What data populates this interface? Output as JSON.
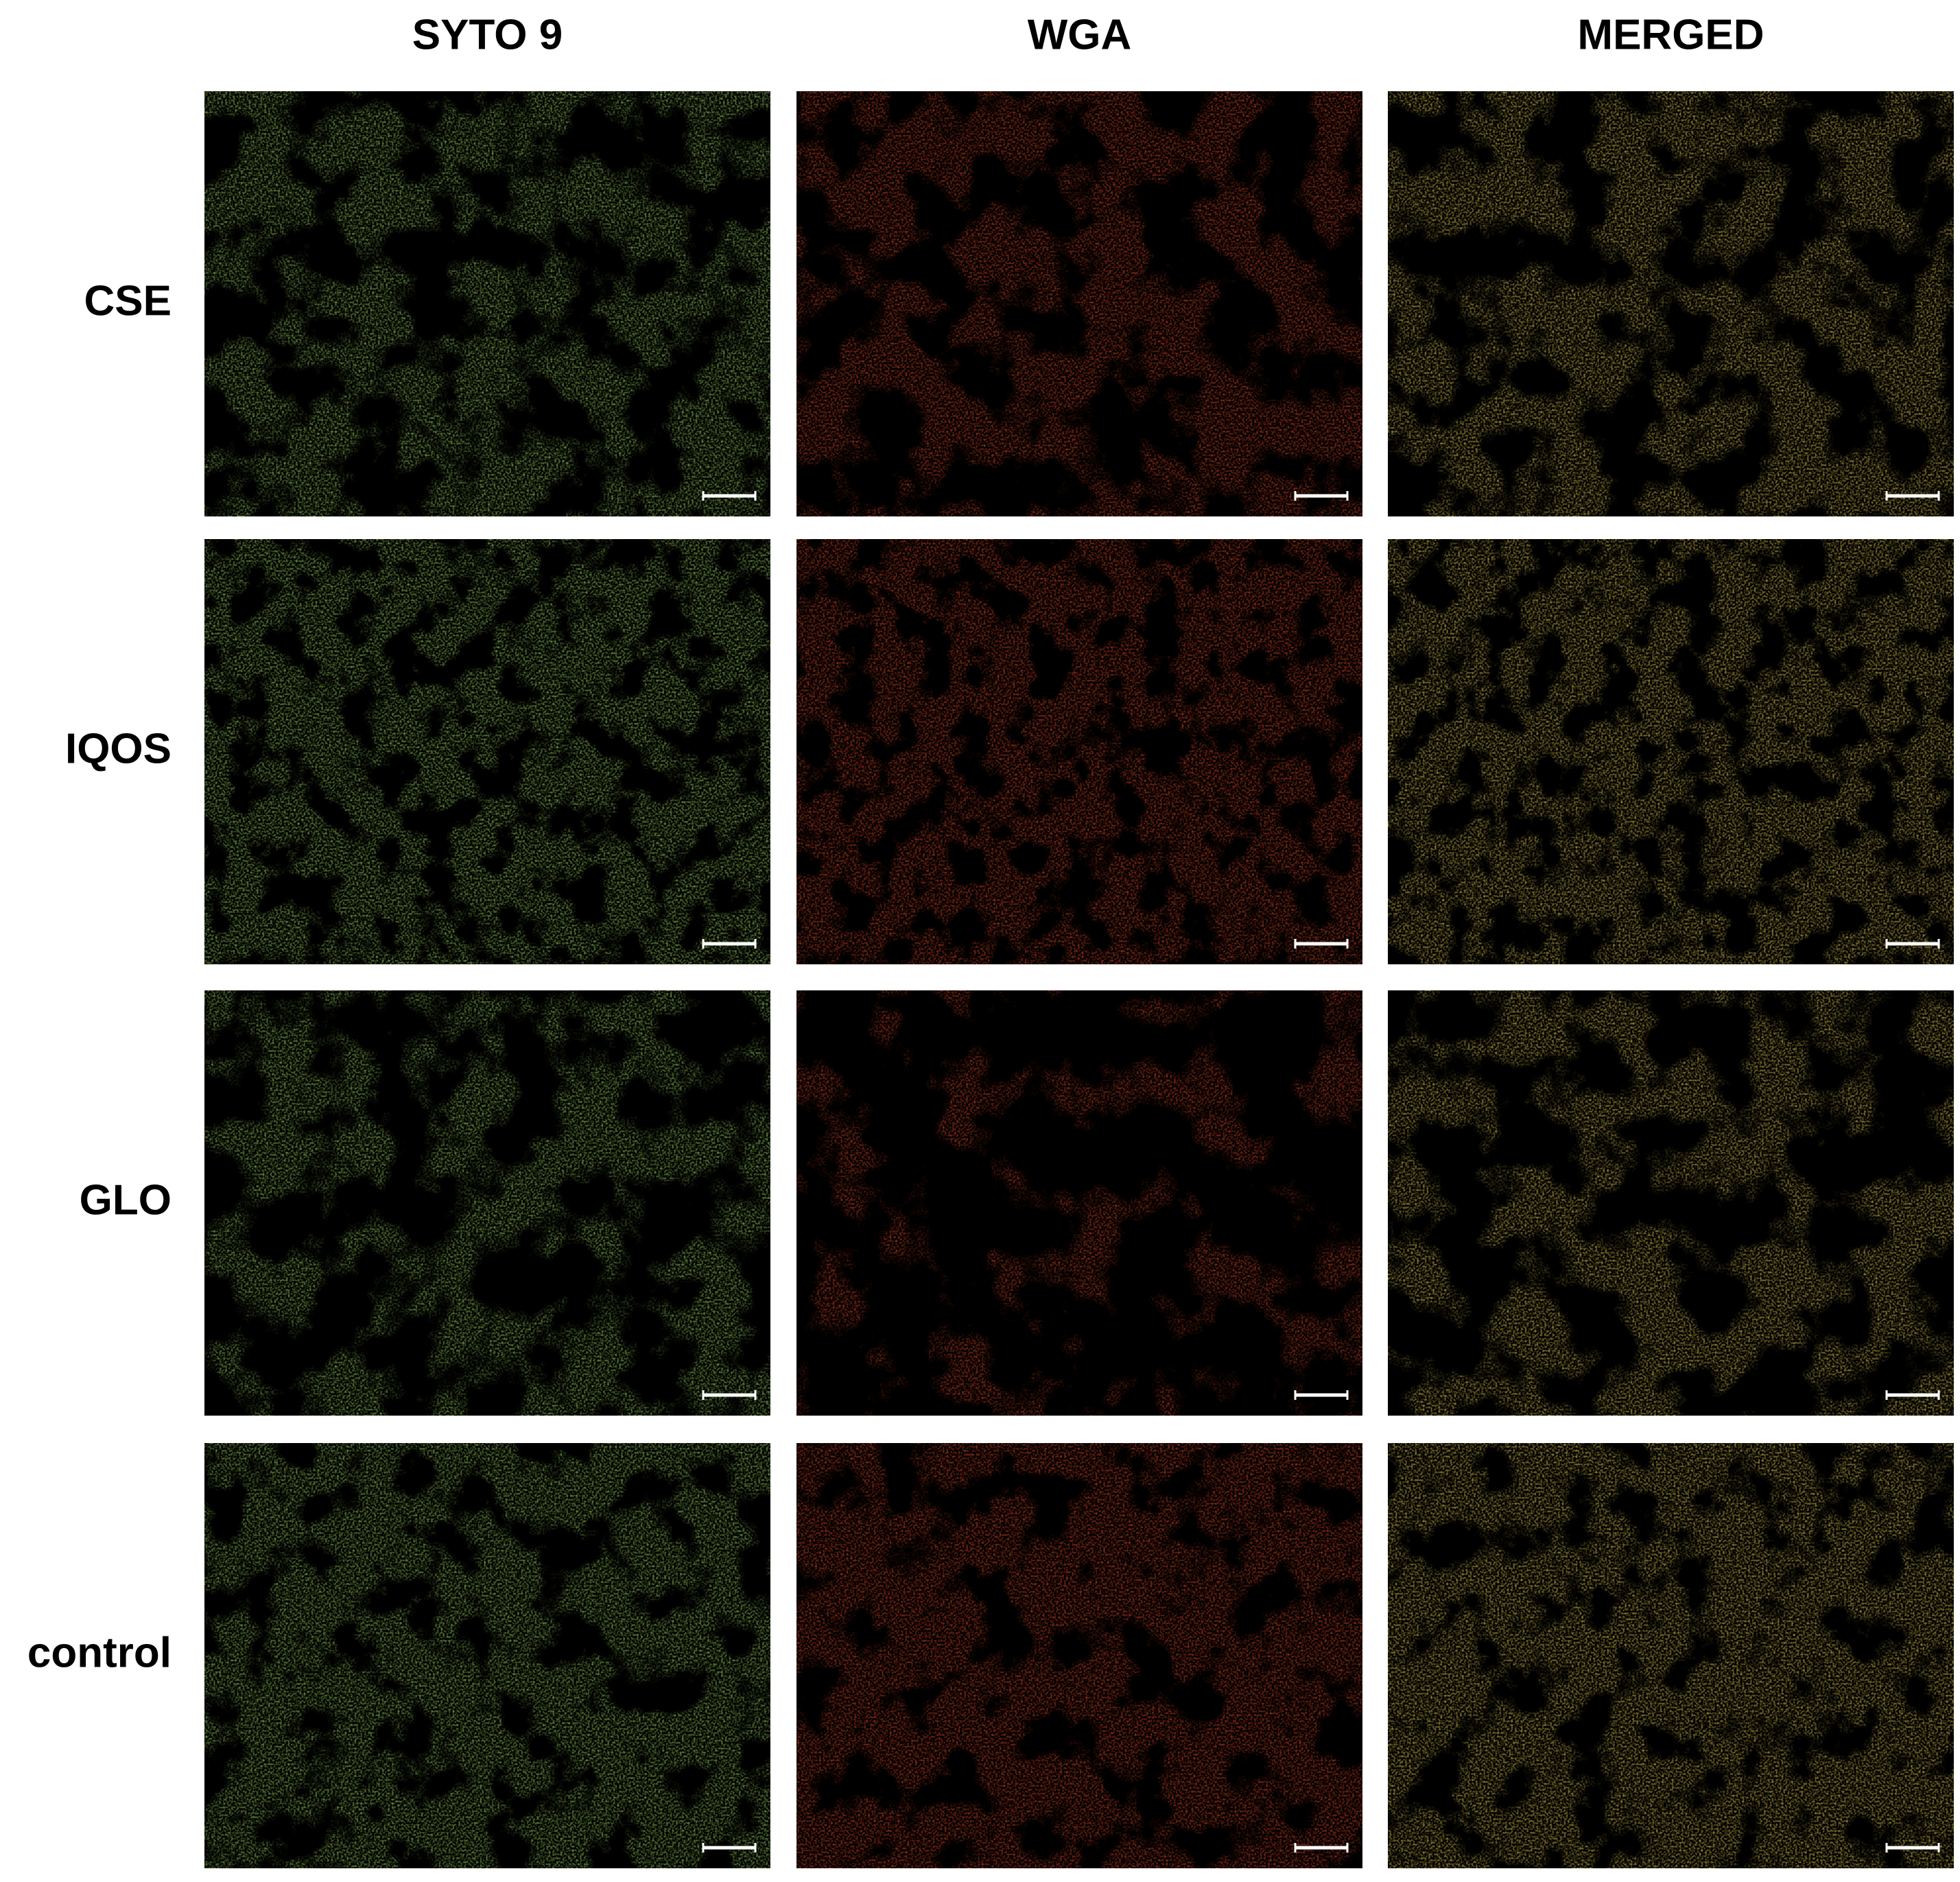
{
  "columns": [
    "SYTO 9",
    "WGA",
    "MERGED"
  ],
  "rows": [
    "CSE",
    "IQOS",
    "GLO",
    "control"
  ]
}
